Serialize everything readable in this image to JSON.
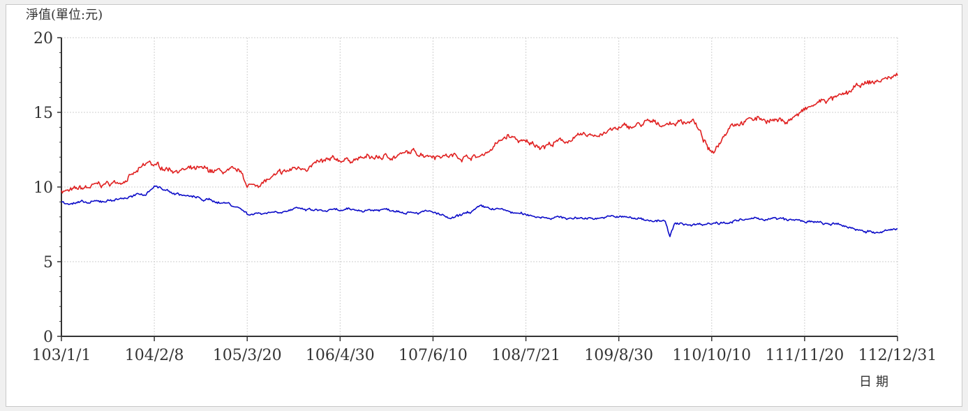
{
  "chart_data": {
    "type": "line",
    "ylabel": "淨值(單位:元)",
    "xlabel": "日期",
    "ylim": [
      0,
      20
    ],
    "yticks": [
      0,
      5,
      10,
      15,
      20
    ],
    "xticks": [
      "103/1/1",
      "104/2/8",
      "105/3/20",
      "106/4/30",
      "107/6/10",
      "108/7/21",
      "109/8/30",
      "110/10/10",
      "111/11/20",
      "112/12/31"
    ],
    "grid": true,
    "colors": {
      "series_red": "#e02020",
      "series_blue": "#0b0bc8",
      "grid": "#cfcfcf",
      "axis": "#333333"
    },
    "series": [
      {
        "color": "#e02020",
        "x": [
          0,
          0.1,
          0.25,
          0.4,
          0.6,
          0.8,
          0.95,
          1.0,
          1.2,
          1.5,
          1.75,
          1.95,
          2.0,
          2.2,
          2.5,
          2.8,
          3.0,
          3.2,
          3.5,
          3.8,
          4.0,
          4.2,
          4.5,
          4.8,
          5.0,
          5.2,
          5.5,
          5.8,
          6.0,
          6.2,
          6.3,
          6.4,
          6.6,
          6.8,
          7.0,
          7.2,
          7.5,
          7.8,
          8.0,
          8.2,
          8.4,
          8.6,
          8.8,
          9.0
        ],
        "values": [
          9.8,
          9.7,
          9.9,
          10.1,
          10.3,
          10.9,
          11.6,
          11.4,
          11.2,
          11.1,
          11.0,
          10.9,
          10.0,
          10.4,
          11.2,
          11.6,
          11.8,
          11.9,
          12.0,
          12.3,
          12.2,
          12.1,
          12.0,
          13.4,
          12.9,
          12.8,
          13.2,
          13.6,
          13.9,
          14.1,
          14.3,
          14.2,
          14.3,
          14.5,
          12.1,
          14.3,
          14.6,
          14.4,
          15.1,
          15.8,
          16.0,
          16.8,
          17.1,
          17.5
        ]
      },
      {
        "color": "#0b0bc8",
        "x": [
          0,
          0.3,
          0.6,
          0.9,
          1.0,
          1.2,
          1.5,
          1.8,
          1.95,
          2.0,
          2.2,
          2.5,
          2.8,
          3.0,
          3.5,
          4.0,
          4.2,
          4.5,
          4.7,
          5.0,
          5.5,
          6.0,
          6.5,
          6.55,
          6.6,
          6.8,
          7.2,
          7.6,
          8.0,
          8.4,
          8.8,
          9.0
        ],
        "values": [
          9.0,
          8.9,
          9.2,
          9.5,
          10.1,
          9.6,
          9.2,
          8.9,
          8.5,
          8.2,
          8.3,
          8.5,
          8.4,
          8.4,
          8.5,
          8.3,
          7.8,
          8.6,
          8.5,
          8.1,
          7.9,
          8.0,
          7.7,
          6.6,
          7.5,
          7.5,
          7.7,
          7.9,
          7.7,
          7.4,
          6.9,
          7.2
        ]
      }
    ]
  }
}
